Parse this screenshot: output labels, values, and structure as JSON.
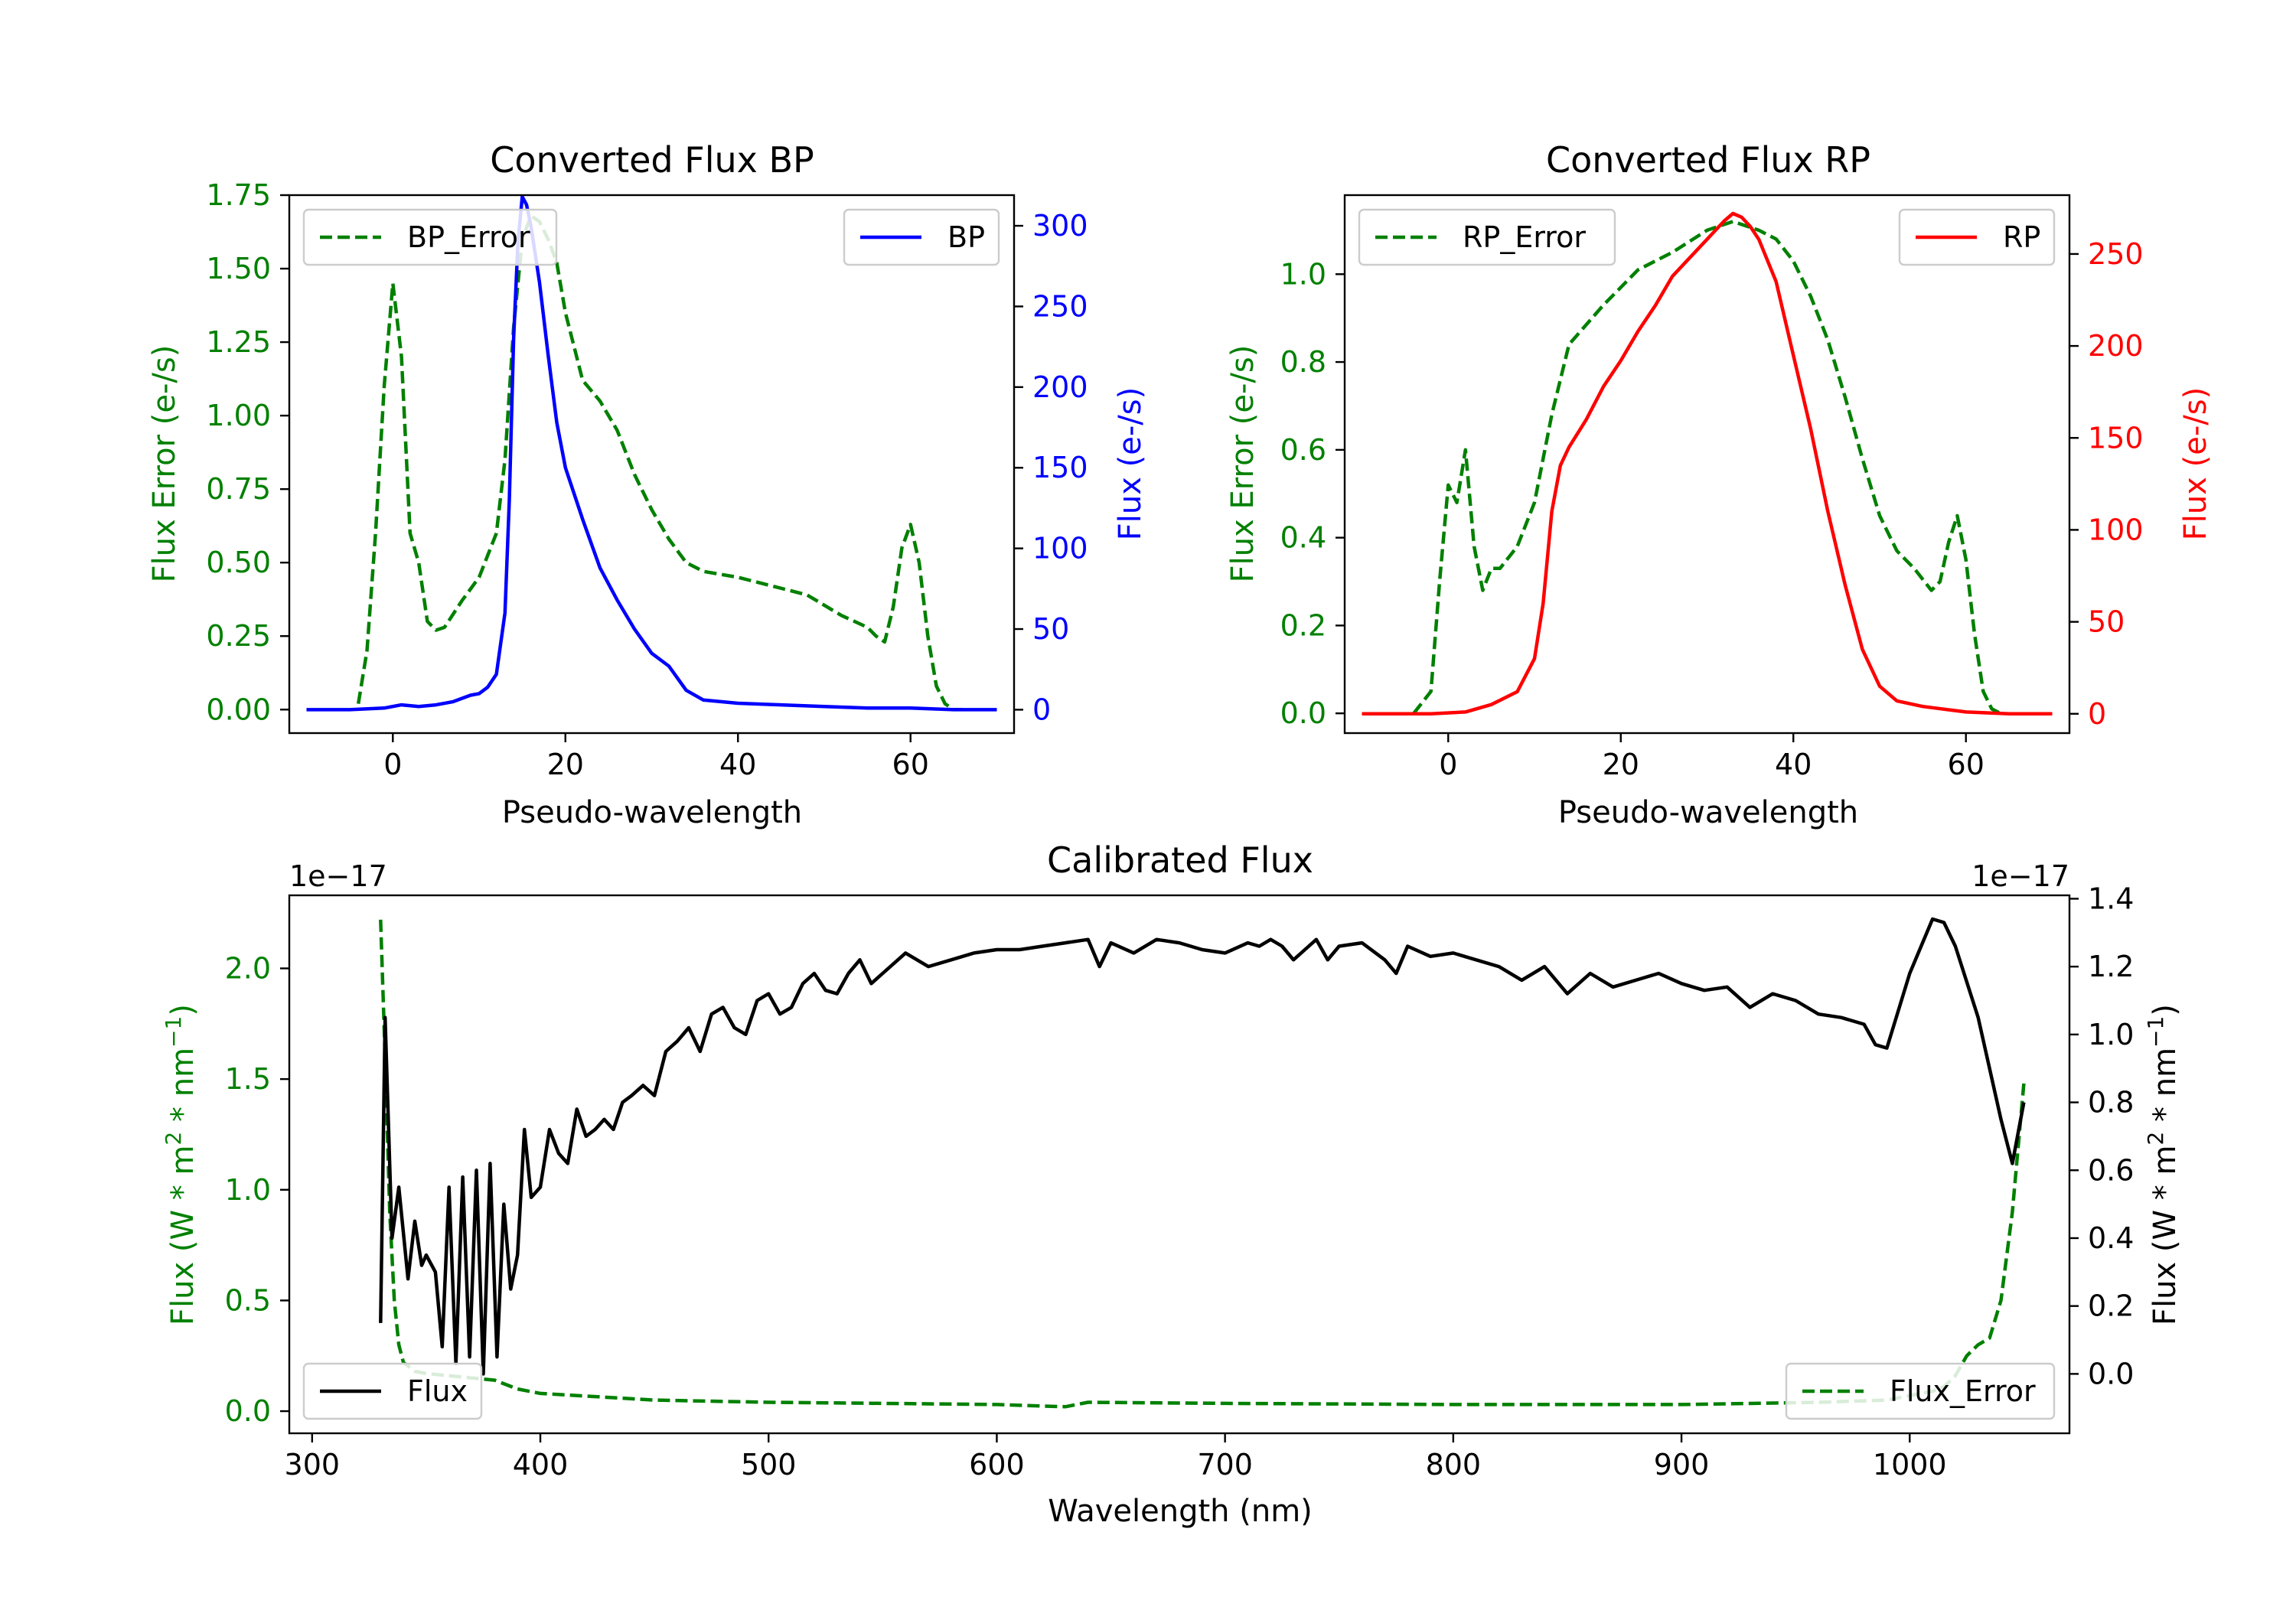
{
  "colors": {
    "green": "#008000",
    "blue": "#0000ff",
    "red": "#ff0000",
    "black": "#000000"
  },
  "chart_data": [
    {
      "id": "bp",
      "type": "line",
      "title": "Converted Flux BP",
      "xlabel": "Pseudo-wavelength",
      "ylabel_left": "Flux Error (e-/s)",
      "ylabel_right": "Flux (e-/s)",
      "xlim": [
        -12,
        72
      ],
      "ylim_left": [
        -0.08,
        1.75
      ],
      "ylim_right": [
        -14.5,
        319
      ],
      "xticks": [
        0,
        20,
        40,
        60
      ],
      "yticks_left": [
        0.0,
        0.25,
        0.5,
        0.75,
        1.0,
        1.25,
        1.5,
        1.75
      ],
      "yticks_right": [
        0,
        50,
        100,
        150,
        200,
        250,
        300
      ],
      "xtick_labels": [
        "0",
        "20",
        "40",
        "60"
      ],
      "ytick_labels_left": [
        "0.00",
        "0.25",
        "0.50",
        "0.75",
        "1.00",
        "1.25",
        "1.50",
        "1.75"
      ],
      "ytick_labels_right": [
        "0",
        "50",
        "100",
        "150",
        "200",
        "250",
        "300"
      ],
      "series": [
        {
          "name": "BP_Error",
          "axis": "left",
          "color": "#008000",
          "dashed": true,
          "x": [
            -4,
            -3,
            -2,
            -1,
            0,
            1,
            2,
            3,
            4,
            5,
            6,
            8,
            10,
            12,
            13,
            14,
            15,
            16,
            17,
            18,
            19,
            20,
            22,
            24,
            26,
            28,
            30,
            32,
            34,
            36,
            38,
            40,
            44,
            48,
            52,
            55,
            56,
            57,
            58,
            59,
            60,
            61,
            62,
            63,
            64,
            65,
            66
          ],
          "y": [
            0.02,
            0.2,
            0.6,
            1.1,
            1.45,
            1.2,
            0.6,
            0.5,
            0.3,
            0.27,
            0.28,
            0.37,
            0.45,
            0.6,
            0.85,
            1.3,
            1.6,
            1.68,
            1.66,
            1.6,
            1.52,
            1.35,
            1.12,
            1.05,
            0.95,
            0.8,
            0.68,
            0.58,
            0.5,
            0.47,
            0.46,
            0.45,
            0.42,
            0.39,
            0.32,
            0.28,
            0.25,
            0.23,
            0.35,
            0.55,
            0.63,
            0.5,
            0.25,
            0.08,
            0.02,
            0.0,
            0.0
          ]
        },
        {
          "name": "BP",
          "axis": "right",
          "color": "#0000ff",
          "dashed": false,
          "x": [
            -10,
            -5,
            -1,
            1,
            3,
            5,
            7,
            9,
            10,
            11,
            12,
            13,
            13.5,
            14,
            14.5,
            15,
            15.5,
            16,
            17,
            18,
            19,
            20,
            22,
            24,
            26,
            28,
            30,
            32,
            34,
            36,
            38,
            40,
            45,
            50,
            55,
            60,
            65,
            70
          ],
          "y": [
            0,
            0,
            1,
            3,
            2,
            3,
            5,
            9,
            10,
            14,
            22,
            60,
            130,
            230,
            290,
            318,
            313,
            300,
            265,
            220,
            178,
            150,
            118,
            88,
            68,
            50,
            35,
            27,
            12,
            6,
            5,
            4,
            3,
            2,
            1,
            1,
            0,
            0
          ]
        }
      ],
      "legends": [
        "BP_Error",
        "BP"
      ]
    },
    {
      "id": "rp",
      "type": "line",
      "title": "Converted Flux RP",
      "xlabel": "Pseudo-wavelength",
      "ylabel_left": "Flux Error (e-/s)",
      "ylabel_right": "Flux (e-/s)",
      "xlim": [
        -12,
        72
      ],
      "ylim_left": [
        -0.045,
        1.18
      ],
      "ylim_right": [
        -10.5,
        282
      ],
      "xticks": [
        0,
        20,
        40,
        60
      ],
      "yticks_left": [
        0.0,
        0.2,
        0.4,
        0.6,
        0.8,
        1.0
      ],
      "yticks_right": [
        0,
        50,
        100,
        150,
        200,
        250
      ],
      "xtick_labels": [
        "0",
        "20",
        "40",
        "60"
      ],
      "ytick_labels_left": [
        "0.0",
        "0.2",
        "0.4",
        "0.6",
        "0.8",
        "1.0"
      ],
      "ytick_labels_right": [
        "0",
        "50",
        "100",
        "150",
        "200",
        "250"
      ],
      "series": [
        {
          "name": "RP_Error",
          "axis": "left",
          "color": "#008000",
          "dashed": true,
          "x": [
            -4,
            -2,
            -1,
            0,
            1,
            2,
            3,
            4,
            5,
            6,
            8,
            10,
            12,
            14,
            18,
            22,
            26,
            30,
            33,
            36,
            38,
            40,
            42,
            44,
            46,
            48,
            50,
            52,
            54,
            56,
            57,
            58,
            59,
            60,
            61,
            62,
            63,
            64
          ],
          "y": [
            0.0,
            0.05,
            0.3,
            0.52,
            0.48,
            0.6,
            0.38,
            0.28,
            0.33,
            0.33,
            0.38,
            0.48,
            0.68,
            0.84,
            0.93,
            1.01,
            1.05,
            1.1,
            1.12,
            1.1,
            1.08,
            1.03,
            0.95,
            0.85,
            0.72,
            0.58,
            0.45,
            0.37,
            0.33,
            0.28,
            0.3,
            0.39,
            0.45,
            0.35,
            0.18,
            0.05,
            0.01,
            0.0
          ]
        },
        {
          "name": "RP",
          "axis": "right",
          "color": "#ff0000",
          "dashed": false,
          "x": [
            -10,
            -2,
            2,
            5,
            8,
            10,
            11,
            12,
            13,
            14,
            16,
            18,
            20,
            22,
            24,
            26,
            28,
            30,
            32,
            33,
            34,
            35,
            36,
            38,
            40,
            42,
            44,
            46,
            48,
            50,
            52,
            55,
            60,
            65,
            70
          ],
          "y": [
            0,
            0,
            1,
            5,
            12,
            30,
            60,
            110,
            135,
            145,
            160,
            178,
            192,
            208,
            222,
            238,
            248,
            258,
            268,
            272,
            270,
            265,
            258,
            235,
            195,
            155,
            110,
            70,
            35,
            15,
            7,
            4,
            1,
            0,
            0
          ]
        }
      ],
      "legends": [
        "RP_Error",
        "RP"
      ]
    },
    {
      "id": "calib",
      "type": "line",
      "title": "Calibrated Flux",
      "xlabel": "Wavelength (nm)",
      "ylabel_left": "Flux (W * m",
      "ylabel_left_sup1": "2",
      "ylabel_left_mid": " * nm",
      "ylabel_left_sup2": "−1",
      "ylabel_left_end": ")",
      "ylabel_right": "Flux (W * m",
      "ylabel_right_sup1": "2",
      "ylabel_right_mid": " * nm",
      "ylabel_right_sup2": "−1",
      "ylabel_right_end": ")",
      "offset_left": "1e−17",
      "offset_right": "1e−17",
      "xlim": [
        290,
        1070
      ],
      "ylim_left": [
        -0.1,
        2.33
      ],
      "ylim_right": [
        -0.175,
        1.41
      ],
      "xticks": [
        300,
        400,
        500,
        600,
        700,
        800,
        900,
        1000
      ],
      "yticks_left": [
        0.0,
        0.5,
        1.0,
        1.5,
        2.0
      ],
      "yticks_right": [
        0.0,
        0.2,
        0.4,
        0.6,
        0.8,
        1.0,
        1.2,
        1.4
      ],
      "xtick_labels": [
        "300",
        "400",
        "500",
        "600",
        "700",
        "800",
        "900",
        "1000"
      ],
      "ytick_labels_left": [
        "0.0",
        "0.5",
        "1.0",
        "1.5",
        "2.0"
      ],
      "ytick_labels_right": [
        "0.0",
        "0.2",
        "0.4",
        "0.6",
        "0.8",
        "1.0",
        "1.2",
        "1.4"
      ],
      "series": [
        {
          "name": "Flux_Error",
          "axis": "left",
          "color": "#008000",
          "dashed": true,
          "x": [
            330,
            332,
            334,
            336,
            338,
            340,
            345,
            350,
            360,
            370,
            380,
            390,
            400,
            450,
            500,
            550,
            600,
            630,
            640,
            700,
            800,
            900,
            960,
            990,
            1000,
            1010,
            1015,
            1020,
            1025,
            1030,
            1035,
            1040,
            1045,
            1050
          ],
          "y": [
            2.22,
            1.6,
            0.9,
            0.5,
            0.3,
            0.22,
            0.18,
            0.17,
            0.16,
            0.15,
            0.14,
            0.1,
            0.08,
            0.05,
            0.04,
            0.035,
            0.03,
            0.02,
            0.04,
            0.035,
            0.03,
            0.03,
            0.04,
            0.05,
            0.07,
            0.09,
            0.11,
            0.16,
            0.25,
            0.3,
            0.33,
            0.5,
            0.9,
            1.48
          ]
        },
        {
          "name": "Flux",
          "axis": "right",
          "color": "#000000",
          "dashed": false,
          "x": [
            330,
            332,
            335,
            338,
            342,
            345,
            348,
            350,
            354,
            357,
            360,
            363,
            366,
            369,
            372,
            375,
            378,
            381,
            384,
            387,
            390,
            393,
            396,
            400,
            404,
            408,
            412,
            416,
            420,
            424,
            428,
            432,
            436,
            440,
            445,
            450,
            455,
            460,
            465,
            470,
            475,
            480,
            485,
            490,
            495,
            500,
            505,
            510,
            515,
            520,
            525,
            530,
            535,
            540,
            545,
            550,
            560,
            570,
            580,
            590,
            600,
            610,
            620,
            630,
            640,
            645,
            650,
            660,
            670,
            680,
            690,
            700,
            710,
            715,
            720,
            725,
            730,
            735,
            740,
            745,
            750,
            760,
            770,
            775,
            780,
            790,
            800,
            810,
            820,
            830,
            840,
            850,
            860,
            870,
            880,
            890,
            900,
            910,
            920,
            930,
            940,
            950,
            960,
            970,
            980,
            985,
            990,
            1000,
            1010,
            1015,
            1020,
            1030,
            1040,
            1045,
            1050
          ],
          "y": [
            0.15,
            1.05,
            0.4,
            0.55,
            0.28,
            0.45,
            0.32,
            0.35,
            0.3,
            0.08,
            0.55,
            0.03,
            0.58,
            0.05,
            0.6,
            0.0,
            0.62,
            0.05,
            0.5,
            0.25,
            0.35,
            0.72,
            0.52,
            0.55,
            0.72,
            0.65,
            0.62,
            0.78,
            0.7,
            0.72,
            0.75,
            0.72,
            0.8,
            0.82,
            0.85,
            0.82,
            0.95,
            0.98,
            1.02,
            0.95,
            1.06,
            1.08,
            1.02,
            1.0,
            1.1,
            1.12,
            1.06,
            1.08,
            1.15,
            1.18,
            1.13,
            1.12,
            1.18,
            1.22,
            1.15,
            1.18,
            1.24,
            1.2,
            1.22,
            1.24,
            1.25,
            1.25,
            1.26,
            1.27,
            1.28,
            1.2,
            1.27,
            1.24,
            1.28,
            1.27,
            1.25,
            1.24,
            1.27,
            1.26,
            1.28,
            1.26,
            1.22,
            1.25,
            1.28,
            1.22,
            1.26,
            1.27,
            1.22,
            1.18,
            1.26,
            1.23,
            1.24,
            1.22,
            1.2,
            1.16,
            1.2,
            1.12,
            1.18,
            1.14,
            1.16,
            1.18,
            1.15,
            1.13,
            1.14,
            1.08,
            1.12,
            1.1,
            1.06,
            1.05,
            1.03,
            0.97,
            0.96,
            1.18,
            1.34,
            1.33,
            1.26,
            1.05,
            0.75,
            0.62,
            0.8
          ]
        }
      ],
      "legends": [
        "Flux",
        "Flux_Error"
      ]
    }
  ]
}
